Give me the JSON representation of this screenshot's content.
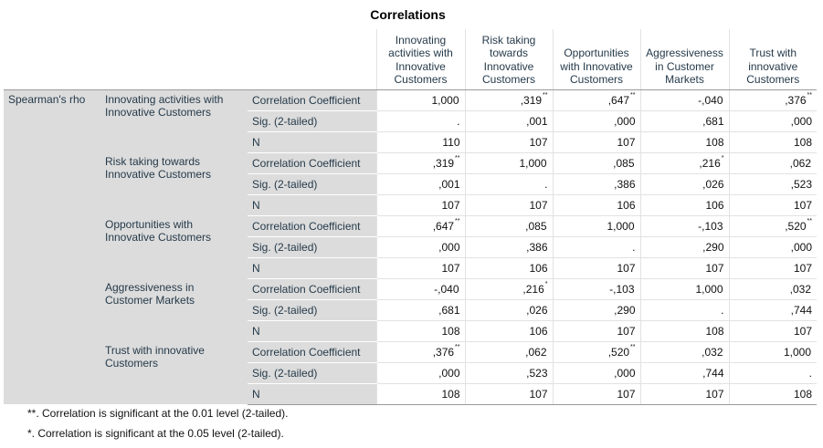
{
  "title": "Correlations",
  "columns": [
    "Innovating activities with Innovative Customers",
    "Risk taking towards Innovative Customers",
    "Opportunities with Innovative Customers",
    "Aggressiveness in Customer Markets",
    "Trust with innovative Customers"
  ],
  "method": "Spearman's rho",
  "stat_labels": [
    "Correlation Coefficient",
    "Sig. (2-tailed)",
    "N"
  ],
  "variables": [
    {
      "label": "Innovating activities with Innovative Customers",
      "coef": [
        {
          "v": "1,000",
          "sig": ""
        },
        {
          "v": ",319",
          "sig": "**"
        },
        {
          "v": ",647",
          "sig": "**"
        },
        {
          "v": "-,040",
          "sig": ""
        },
        {
          "v": ",376",
          "sig": "**"
        }
      ],
      "sig": [
        ".",
        ",001",
        ",000",
        ",681",
        ",000"
      ],
      "n": [
        "110",
        "107",
        "107",
        "108",
        "108"
      ]
    },
    {
      "label": "Risk taking towards Innovative Customers",
      "coef": [
        {
          "v": ",319",
          "sig": "**"
        },
        {
          "v": "1,000",
          "sig": ""
        },
        {
          "v": ",085",
          "sig": ""
        },
        {
          "v": ",216",
          "sig": "*"
        },
        {
          "v": ",062",
          "sig": ""
        }
      ],
      "sig": [
        ",001",
        ".",
        ",386",
        ",026",
        ",523"
      ],
      "n": [
        "107",
        "107",
        "106",
        "106",
        "107"
      ]
    },
    {
      "label": "Opportunities with Innovative Customers",
      "coef": [
        {
          "v": ",647",
          "sig": "**"
        },
        {
          "v": ",085",
          "sig": ""
        },
        {
          "v": "1,000",
          "sig": ""
        },
        {
          "v": "-,103",
          "sig": ""
        },
        {
          "v": ",520",
          "sig": "**"
        }
      ],
      "sig": [
        ",000",
        ",386",
        ".",
        ",290",
        ",000"
      ],
      "n": [
        "107",
        "106",
        "107",
        "107",
        "107"
      ]
    },
    {
      "label": "Aggressiveness in Customer Markets",
      "coef": [
        {
          "v": "-,040",
          "sig": ""
        },
        {
          "v": ",216",
          "sig": "*"
        },
        {
          "v": "-,103",
          "sig": ""
        },
        {
          "v": "1,000",
          "sig": ""
        },
        {
          "v": ",032",
          "sig": ""
        }
      ],
      "sig": [
        ",681",
        ",026",
        ",290",
        ".",
        ",744"
      ],
      "n": [
        "108",
        "106",
        "107",
        "108",
        "107"
      ]
    },
    {
      "label": "Trust with innovative Customers",
      "coef": [
        {
          "v": ",376",
          "sig": "**"
        },
        {
          "v": ",062",
          "sig": ""
        },
        {
          "v": ",520",
          "sig": "**"
        },
        {
          "v": ",032",
          "sig": ""
        },
        {
          "v": "1,000",
          "sig": ""
        }
      ],
      "sig": [
        ",000",
        ",523",
        ",000",
        ",744",
        "."
      ],
      "n": [
        "108",
        "107",
        "107",
        "107",
        "108"
      ]
    }
  ],
  "footnotes": [
    "**. Correlation is significant at the 0.01 level (2-tailed).",
    "*. Correlation is significant at the 0.05 level (2-tailed)."
  ]
}
